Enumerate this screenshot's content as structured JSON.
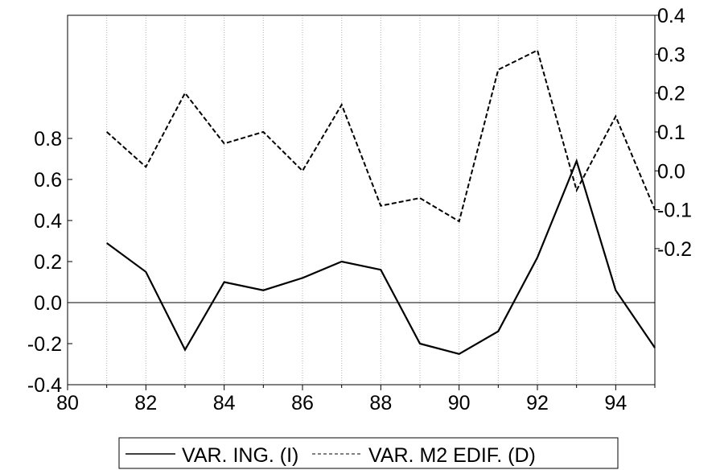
{
  "chart_data": {
    "type": "line",
    "x": [
      81,
      82,
      83,
      84,
      85,
      86,
      87,
      88,
      89,
      90,
      91,
      92,
      93,
      94,
      95
    ],
    "x_range": [
      80,
      95
    ],
    "x_ticks": [
      80,
      82,
      84,
      86,
      88,
      90,
      92,
      94
    ],
    "x_tick_labels": [
      "80",
      "82",
      "84",
      "86",
      "88",
      "90",
      "92",
      "94"
    ],
    "left_axis": {
      "range": [
        -0.4,
        1.4
      ],
      "ticks": [
        -0.4,
        -0.2,
        0.0,
        0.2,
        0.4,
        0.6,
        0.8
      ],
      "tick_labels": [
        "-0.4",
        "-0.2",
        "0.0",
        "0.2",
        "0.4",
        "0.6",
        "0.8"
      ]
    },
    "right_axis": {
      "range": [
        -0.55,
        0.4
      ],
      "ticks": [
        -0.2,
        -0.1,
        0.0,
        0.1,
        0.2,
        0.3,
        0.4
      ],
      "tick_labels": [
        "-0.2",
        "-0.1",
        "0.0",
        "0.1",
        "0.2",
        "0.3",
        "0.4"
      ]
    },
    "series": [
      {
        "name": "VAR. ING. (I)",
        "axis": "left",
        "style": "solid",
        "values": [
          0.29,
          0.15,
          -0.23,
          0.1,
          0.06,
          0.12,
          0.2,
          0.16,
          -0.2,
          -0.25,
          -0.14,
          0.22,
          0.69,
          0.06,
          -0.22
        ]
      },
      {
        "name": "VAR. M2 EDIF. (D)",
        "axis": "right",
        "style": "dashed",
        "values": [
          0.1,
          0.01,
          0.2,
          0.07,
          0.1,
          0.0,
          0.17,
          -0.09,
          -0.07,
          -0.13,
          0.26,
          0.31,
          -0.05,
          0.14,
          -0.1
        ]
      }
    ],
    "grid": "vertical-dotted",
    "zero_line": true,
    "legend_position": "bottom-center"
  }
}
